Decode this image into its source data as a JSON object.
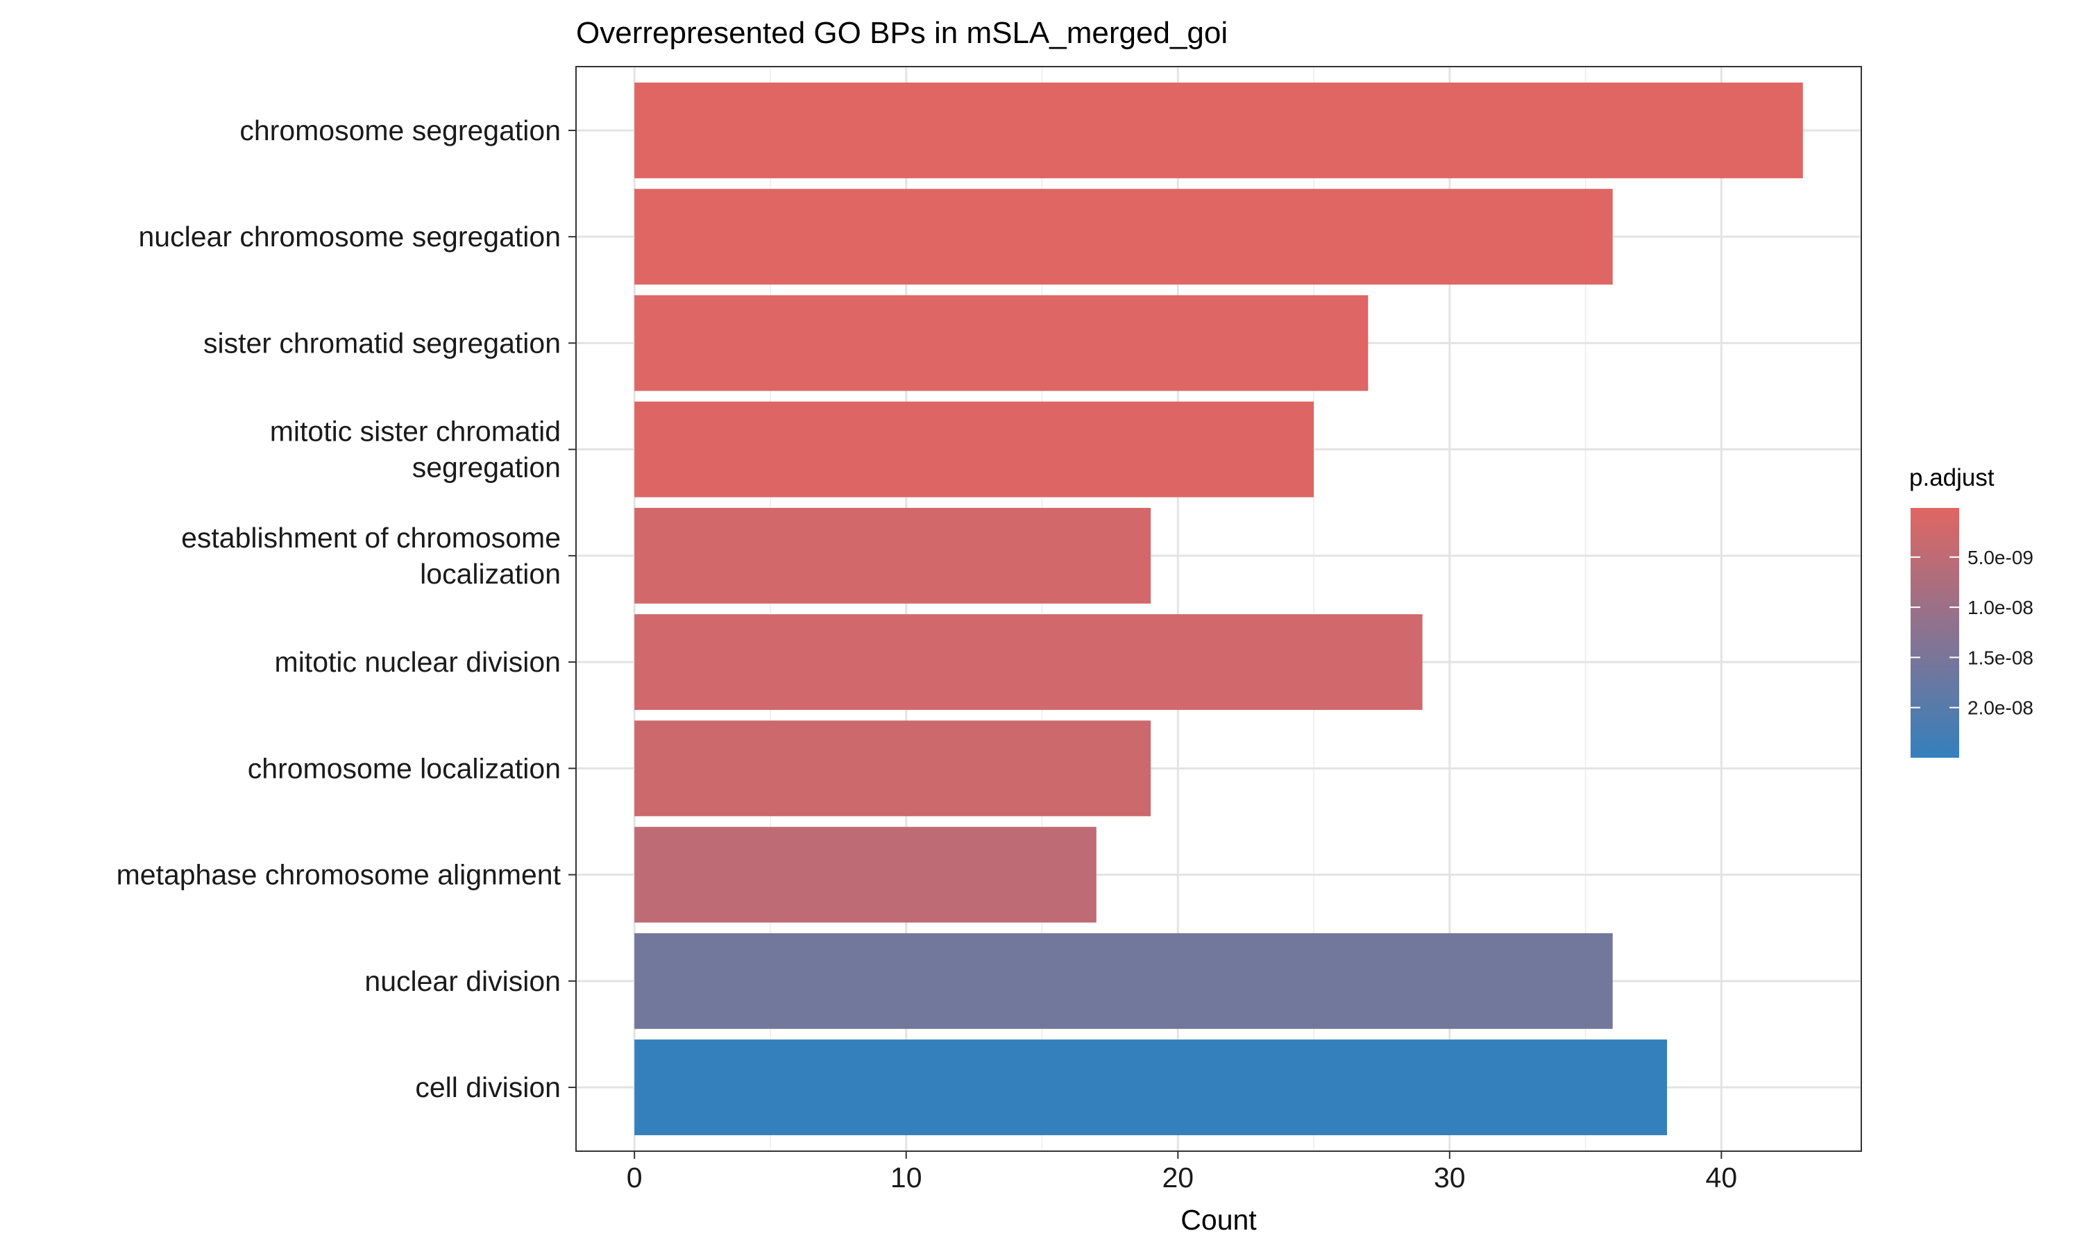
{
  "chart_data": {
    "type": "bar",
    "orientation": "horizontal",
    "title": "Overrepresented GO BPs in mSLA_merged_goi",
    "xlabel": "Count",
    "ylabel": "",
    "xlim": [
      -2.15,
      45.15
    ],
    "x_ticks": [
      0,
      10,
      20,
      30,
      40
    ],
    "x_tick_labels": [
      "0",
      "10",
      "20",
      "30",
      "40"
    ],
    "grid": true,
    "categories": [
      [
        "chromosome segregation"
      ],
      [
        "nuclear chromosome segregation"
      ],
      [
        "sister chromatid segregation"
      ],
      [
        "mitotic sister chromatid",
        "segregation"
      ],
      [
        "establishment of chromosome",
        "localization"
      ],
      [
        "mitotic nuclear division"
      ],
      [
        "chromosome localization"
      ],
      [
        "metaphase chromosome alignment"
      ],
      [
        "nuclear division"
      ],
      [
        "cell division"
      ]
    ],
    "values": [
      43,
      36,
      27,
      25,
      19,
      29,
      19,
      17,
      36,
      38
    ],
    "p_adjust": [
      1e-10,
      2e-10,
      4e-10,
      5e-10,
      2e-09,
      2.2e-09,
      3e-09,
      5e-09,
      1.6e-08,
      2.5e-08
    ],
    "legend": {
      "title": "p.adjust",
      "position": "right",
      "range": [
        1e-10,
        2.5e-08
      ],
      "ticks": [
        5e-09,
        1e-08,
        1.5e-08,
        2e-08
      ],
      "tick_labels": [
        "5.0e-09",
        "1.0e-08",
        "1.5e-08",
        "2.0e-08"
      ],
      "color_low": "#E06663",
      "color_high": "#3480BD"
    }
  }
}
